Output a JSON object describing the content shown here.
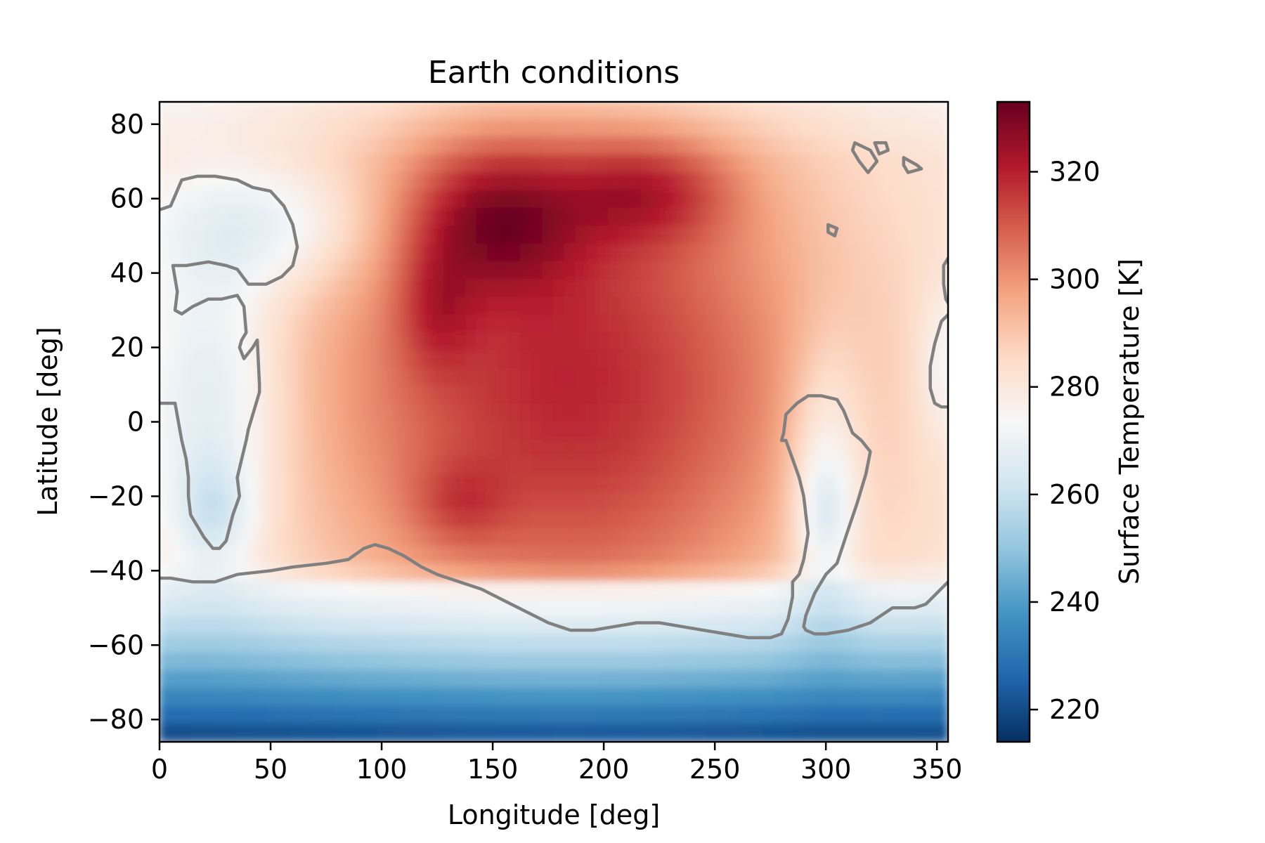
{
  "chart_data": {
    "type": "heatmap",
    "title": "Earth conditions",
    "xlabel": "Longitude [deg]",
    "ylabel": "Latitude [deg]",
    "colorbar_label": "Surface Temperature [K]",
    "colormap": "RdBu_r",
    "colormap_stops": [
      "#053061",
      "#2166ac",
      "#4393c3",
      "#92c5de",
      "#d1e5f0",
      "#f7f7f7",
      "#fddbc7",
      "#f4a582",
      "#d6604d",
      "#b2182b",
      "#67001f"
    ],
    "xlim": [
      0,
      355
    ],
    "ylim": [
      -86,
      86
    ],
    "clim": [
      214,
      333
    ],
    "xticks": [
      0,
      50,
      100,
      150,
      200,
      250,
      300,
      350
    ],
    "xtick_labels": [
      "0",
      "50",
      "100",
      "150",
      "200",
      "250",
      "300",
      "350"
    ],
    "yticks": [
      80,
      60,
      40,
      20,
      0,
      -20,
      -40,
      -60,
      -80
    ],
    "ytick_labels": [
      "80",
      "60",
      "40",
      "20",
      "0",
      "−20",
      "−40",
      "−60",
      "−80"
    ],
    "cticks": [
      220,
      240,
      260,
      280,
      300,
      320
    ],
    "ctick_labels": [
      "220",
      "240",
      "260",
      "280",
      "300",
      "320"
    ],
    "grid": false,
    "contour_color": "#808080",
    "hot_spots": [
      {
        "lon": 185,
        "lat": 10,
        "sigma_lon": 85,
        "sigma_lat": 55,
        "amp": 40
      },
      {
        "lon": 150,
        "lat": 55,
        "sigma_lon": 28,
        "sigma_lat": 14,
        "amp": 26
      },
      {
        "lon": 220,
        "lat": 62,
        "sigma_lon": 28,
        "sigma_lat": 10,
        "amp": 20
      },
      {
        "lon": 125,
        "lat": 30,
        "sigma_lon": 12,
        "sigma_lat": 12,
        "amp": 12
      },
      {
        "lon": 135,
        "lat": -22,
        "sigma_lon": 15,
        "sigma_lat": 8,
        "amp": 10
      }
    ],
    "cold_spots": [
      {
        "lon": 25,
        "lat": 5,
        "sigma_lon": 22,
        "sigma_lat": 30,
        "amp": 18
      },
      {
        "lon": 25,
        "lat": -25,
        "sigma_lon": 12,
        "sigma_lat": 10,
        "amp": 14
      },
      {
        "lon": 50,
        "lat": 52,
        "sigma_lon": 35,
        "sigma_lat": 12,
        "amp": 16
      },
      {
        "lon": 300,
        "lat": -15,
        "sigma_lon": 12,
        "sigma_lat": 25,
        "amp": 18
      },
      {
        "lon": 300,
        "lat": -25,
        "sigma_lon": 8,
        "sigma_lat": 10,
        "amp": 10
      },
      {
        "lon": 353,
        "lat": 15,
        "sigma_lon": 8,
        "sigma_lat": 15,
        "amp": 10
      }
    ],
    "contours": [
      [
        [
          0,
          57
        ],
        [
          5,
          58
        ],
        [
          10,
          65
        ],
        [
          17,
          66
        ],
        [
          25,
          66
        ],
        [
          35,
          65
        ],
        [
          42,
          63
        ],
        [
          50,
          62
        ],
        [
          56,
          58
        ],
        [
          60,
          53
        ],
        [
          62,
          47
        ],
        [
          60,
          42
        ],
        [
          55,
          39
        ],
        [
          48,
          37
        ],
        [
          40,
          37
        ],
        [
          35,
          41
        ],
        [
          30,
          42
        ],
        [
          22,
          43
        ],
        [
          12,
          42
        ],
        [
          6,
          42
        ],
        [
          8,
          35
        ],
        [
          7,
          30
        ],
        [
          10,
          29
        ],
        [
          15,
          31
        ],
        [
          22,
          33
        ],
        [
          28,
          33
        ],
        [
          35,
          34
        ],
        [
          38,
          31
        ],
        [
          39,
          24
        ],
        [
          37,
          22
        ],
        [
          36,
          20
        ],
        [
          38,
          17
        ],
        [
          42,
          20
        ],
        [
          44,
          22
        ],
        [
          45,
          10
        ],
        [
          45,
          8
        ],
        [
          41,
          0
        ],
        [
          40,
          -2
        ],
        [
          39,
          -5
        ],
        [
          37,
          -10
        ],
        [
          35,
          -15
        ],
        [
          36,
          -20
        ],
        [
          33,
          -25
        ],
        [
          30,
          -32
        ],
        [
          27,
          -34
        ],
        [
          24,
          -34
        ],
        [
          20,
          -31
        ],
        [
          14,
          -25
        ],
        [
          13,
          -20
        ],
        [
          13,
          -15
        ],
        [
          12,
          -10
        ],
        [
          10,
          -5
        ],
        [
          7,
          5
        ],
        [
          3,
          5
        ],
        [
          0,
          5
        ]
      ],
      [
        [
          0,
          -42
        ],
        [
          5,
          -42
        ],
        [
          15,
          -43
        ],
        [
          25,
          -43
        ],
        [
          35,
          -41
        ],
        [
          50,
          -40
        ],
        [
          60,
          -39
        ],
        [
          75,
          -38
        ],
        [
          85,
          -37
        ],
        [
          92,
          -34
        ],
        [
          97,
          -33
        ],
        [
          103,
          -34
        ],
        [
          110,
          -36
        ],
        [
          118,
          -39
        ],
        [
          125,
          -41
        ],
        [
          135,
          -43
        ],
        [
          145,
          -45
        ],
        [
          155,
          -48
        ],
        [
          165,
          -51
        ],
        [
          175,
          -54
        ],
        [
          185,
          -56
        ],
        [
          195,
          -56
        ],
        [
          205,
          -55
        ],
        [
          215,
          -54
        ],
        [
          225,
          -54
        ],
        [
          235,
          -55
        ],
        [
          245,
          -56
        ],
        [
          255,
          -57
        ],
        [
          265,
          -58
        ],
        [
          275,
          -58
        ],
        [
          280,
          -57
        ],
        [
          283,
          -53
        ],
        [
          285,
          -47
        ],
        [
          285,
          -43
        ],
        [
          288,
          -41
        ],
        [
          290,
          -37
        ],
        [
          292,
          -30
        ],
        [
          291,
          -25
        ],
        [
          290,
          -20
        ],
        [
          288,
          -15
        ],
        [
          285,
          -10
        ],
        [
          282,
          -5
        ],
        [
          280,
          -5
        ],
        [
          281,
          -3
        ],
        [
          282,
          2
        ],
        [
          287,
          5
        ],
        [
          292,
          7
        ],
        [
          298,
          7
        ],
        [
          305,
          6
        ],
        [
          308,
          3
        ],
        [
          312,
          -3
        ],
        [
          316,
          -5
        ],
        [
          320,
          -8
        ],
        [
          318,
          -14
        ],
        [
          314,
          -22
        ],
        [
          310,
          -29
        ],
        [
          305,
          -38
        ],
        [
          300,
          -41
        ],
        [
          297,
          -44
        ],
        [
          295,
          -46
        ],
        [
          293,
          -49
        ],
        [
          291,
          -52
        ],
        [
          290,
          -55
        ],
        [
          291,
          -56
        ],
        [
          295,
          -57
        ],
        [
          300,
          -57
        ],
        [
          310,
          -56
        ],
        [
          320,
          -54
        ],
        [
          325,
          -52
        ],
        [
          330,
          -50
        ],
        [
          340,
          -50
        ],
        [
          345,
          -49
        ],
        [
          355,
          -43
        ]
      ],
      [
        [
          355,
          44
        ],
        [
          353,
          42
        ],
        [
          353,
          37
        ],
        [
          354,
          33
        ],
        [
          357,
          30
        ],
        [
          352,
          27
        ],
        [
          349,
          21
        ],
        [
          347,
          15
        ],
        [
          347,
          9
        ],
        [
          349,
          5
        ],
        [
          352,
          4
        ],
        [
          355,
          4
        ]
      ],
      [
        [
          312,
          73
        ],
        [
          315,
          70
        ],
        [
          319,
          67
        ],
        [
          323,
          70
        ],
        [
          320,
          73
        ],
        [
          313,
          75
        ],
        [
          312,
          73
        ]
      ],
      [
        [
          322,
          75
        ],
        [
          327,
          75
        ],
        [
          328,
          73
        ],
        [
          324,
          72
        ],
        [
          322,
          75
        ]
      ],
      [
        [
          335,
          71
        ],
        [
          341,
          69
        ],
        [
          343,
          68
        ],
        [
          337,
          67
        ],
        [
          335,
          69
        ],
        [
          335,
          71
        ]
      ],
      [
        [
          301,
          53
        ],
        [
          305,
          52
        ],
        [
          304,
          50
        ],
        [
          301,
          51
        ],
        [
          301,
          53
        ]
      ]
    ]
  }
}
